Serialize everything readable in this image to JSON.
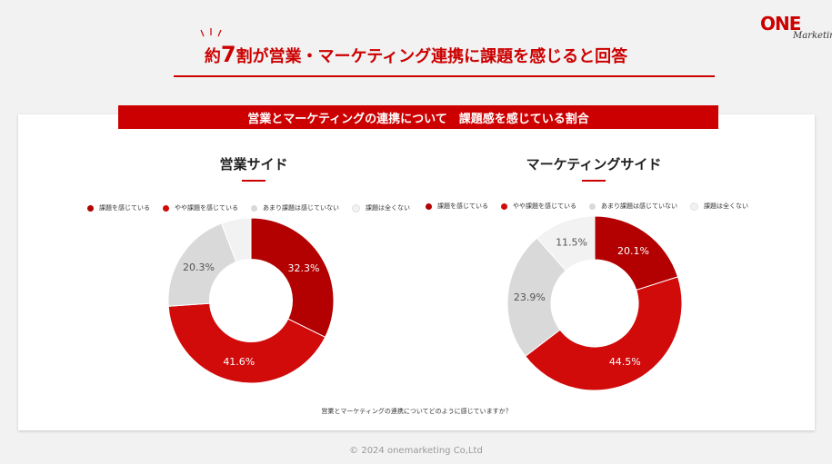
{
  "headline": {
    "prefix": "約",
    "number": "7",
    "suffix": "割が営業・マーケティング連携に課題を感じると回答"
  },
  "logo": {
    "main": "ONE",
    "script": "Marketing"
  },
  "banner": "営業とマーケティングの連携について　課題感を感じている割合",
  "question": "営業とマーケティングの連携についてどのように感じていますか？",
  "footer": "© 2024 onemarketing Co,Ltd",
  "colors": {
    "accent": "#cc0000",
    "series": [
      "#b30000",
      "#d10a0a",
      "#d9d9d9",
      "#f2f2f2"
    ]
  },
  "chart_data": [
    {
      "type": "pie",
      "title": "営業サイド",
      "categories": [
        "課題を感じている",
        "やや課題を感じている",
        "あまり課題は感じていない",
        "課題は全くない"
      ],
      "values": [
        32.3,
        41.6,
        20.3,
        5.8
      ],
      "labels": [
        "32.3%",
        "41.6%",
        "20.3%",
        ""
      ],
      "legend": "top"
    },
    {
      "type": "pie",
      "title": "マーケティングサイド",
      "categories": [
        "課題を感じている",
        "やや課題を感じている",
        "あまり課題は感じていない",
        "課題は全くない"
      ],
      "values": [
        20.1,
        44.5,
        23.9,
        11.5
      ],
      "labels": [
        "20.1%",
        "44.5%",
        "23.9%",
        "11.5%"
      ],
      "legend": "top"
    }
  ]
}
